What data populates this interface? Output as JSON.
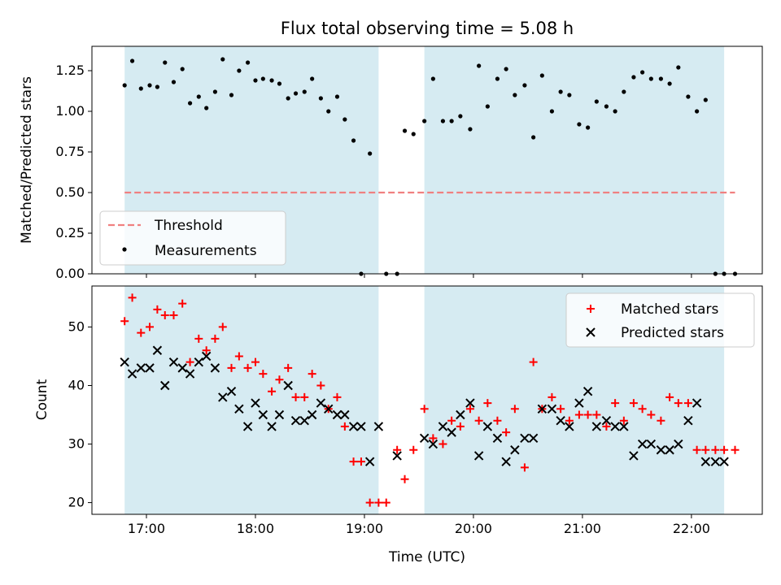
{
  "chart_data": [
    {
      "type": "scatter",
      "title": "Flux total observing time = 5.08 h",
      "xlabel": "",
      "ylabel": "Matched/Predicted stars",
      "ylim": [
        0,
        1.4
      ],
      "yticks": [
        "0.00",
        "0.25",
        "0.50",
        "0.75",
        "1.00",
        "1.25"
      ],
      "xlim_hours": [
        16.5,
        22.65
      ],
      "xtick_hours": [
        17,
        18,
        19,
        20,
        21,
        22
      ],
      "shaded_spans_hours": [
        [
          16.8,
          19.13
        ],
        [
          19.55,
          22.3
        ]
      ],
      "threshold": {
        "name": "Threshold",
        "y": 0.5,
        "x_start_hours": 16.8,
        "x_end_hours": 22.4,
        "color": "#f08080"
      },
      "series": [
        {
          "name": "Measurements",
          "color": "#000000",
          "x_hours": [
            16.8,
            16.87,
            16.95,
            17.03,
            17.1,
            17.17,
            17.25,
            17.33,
            17.4,
            17.48,
            17.55,
            17.63,
            17.7,
            17.78,
            17.85,
            17.93,
            18.0,
            18.07,
            18.15,
            18.22,
            18.3,
            18.37,
            18.45,
            18.52,
            18.6,
            18.67,
            18.75,
            18.82,
            18.9,
            18.97,
            19.05,
            19.2,
            19.3,
            19.37,
            19.45,
            19.55,
            19.63,
            19.72,
            19.8,
            19.88,
            19.97,
            20.05,
            20.13,
            20.22,
            20.3,
            20.38,
            20.47,
            20.55,
            20.63,
            20.72,
            20.8,
            20.88,
            20.97,
            21.05,
            21.13,
            21.22,
            21.3,
            21.38,
            21.47,
            21.55,
            21.63,
            21.72,
            21.8,
            21.88,
            21.97,
            22.05,
            22.13,
            22.22,
            22.3,
            22.4
          ],
          "y": [
            1.16,
            1.31,
            1.14,
            1.16,
            1.15,
            1.3,
            1.18,
            1.26,
            1.05,
            1.09,
            1.02,
            1.12,
            1.32,
            1.1,
            1.25,
            1.3,
            1.19,
            1.2,
            1.19,
            1.17,
            1.08,
            1.11,
            1.12,
            1.2,
            1.08,
            1.0,
            1.09,
            0.95,
            0.82,
            0.0,
            0.74,
            0.0,
            0.0,
            0.88,
            0.86,
            0.94,
            1.2,
            0.94,
            0.94,
            0.97,
            0.89,
            1.28,
            1.03,
            1.2,
            1.26,
            1.1,
            1.16,
            0.84,
            1.22,
            1.0,
            1.12,
            1.1,
            0.92,
            0.9,
            1.06,
            1.03,
            1.0,
            1.12,
            1.21,
            1.24,
            1.2,
            1.2,
            1.17,
            1.27,
            1.09,
            1.0,
            1.07,
            0.0,
            0.0,
            0.0
          ]
        }
      ],
      "legend": {
        "placement": "lower-left",
        "entries": [
          "Threshold",
          "Measurements"
        ]
      }
    },
    {
      "type": "scatter",
      "title": "",
      "xlabel": "Time (UTC)",
      "ylabel": "Count",
      "ylim": [
        18,
        57
      ],
      "yticks": [
        "20",
        "30",
        "40",
        "50"
      ],
      "xlim_hours": [
        16.5,
        22.65
      ],
      "xtick_hours": [
        17,
        18,
        19,
        20,
        21,
        22
      ],
      "xtick_labels": [
        "17:00",
        "18:00",
        "19:00",
        "20:00",
        "21:00",
        "22:00"
      ],
      "shaded_spans_hours": [
        [
          16.8,
          19.13
        ],
        [
          19.55,
          22.3
        ]
      ],
      "series": [
        {
          "name": "Matched stars",
          "marker": "plus",
          "color": "#ff0000",
          "x_hours": [
            16.8,
            16.87,
            16.95,
            17.03,
            17.1,
            17.17,
            17.25,
            17.33,
            17.4,
            17.48,
            17.55,
            17.63,
            17.7,
            17.78,
            17.85,
            17.93,
            18.0,
            18.07,
            18.15,
            18.22,
            18.3,
            18.37,
            18.45,
            18.52,
            18.6,
            18.67,
            18.75,
            18.82,
            18.9,
            18.97,
            19.05,
            19.13,
            19.2,
            19.3,
            19.37,
            19.45,
            19.55,
            19.63,
            19.72,
            19.8,
            19.88,
            19.97,
            20.05,
            20.13,
            20.22,
            20.3,
            20.38,
            20.47,
            20.55,
            20.63,
            20.72,
            20.8,
            20.88,
            20.97,
            21.05,
            21.13,
            21.22,
            21.3,
            21.38,
            21.47,
            21.55,
            21.63,
            21.72,
            21.8,
            21.88,
            21.97,
            22.05,
            22.13,
            22.22,
            22.3,
            22.4
          ],
          "y": [
            51,
            55,
            49,
            50,
            53,
            52,
            52,
            54,
            44,
            48,
            46,
            48,
            50,
            43,
            45,
            43,
            44,
            42,
            39,
            41,
            43,
            38,
            38,
            42,
            40,
            36,
            38,
            33,
            27,
            27,
            20,
            20,
            20,
            29,
            24,
            29,
            36,
            31,
            30,
            34,
            33,
            36,
            34,
            37,
            34,
            32,
            36,
            26,
            44,
            36,
            38,
            36,
            34,
            35,
            35,
            35,
            33,
            37,
            34,
            37,
            36,
            35,
            34,
            38,
            37,
            37,
            29,
            29,
            29,
            29,
            29
          ]
        },
        {
          "name": "Predicted stars",
          "marker": "x",
          "color": "#000000",
          "x_hours": [
            16.8,
            16.87,
            16.95,
            17.03,
            17.1,
            17.17,
            17.25,
            17.33,
            17.4,
            17.48,
            17.55,
            17.63,
            17.7,
            17.78,
            17.85,
            17.93,
            18.0,
            18.07,
            18.15,
            18.22,
            18.3,
            18.37,
            18.45,
            18.52,
            18.6,
            18.67,
            18.75,
            18.82,
            18.9,
            18.97,
            19.05,
            19.13,
            19.3,
            19.55,
            19.63,
            19.72,
            19.8,
            19.88,
            19.97,
            20.05,
            20.13,
            20.22,
            20.3,
            20.38,
            20.47,
            20.55,
            20.63,
            20.72,
            20.8,
            20.88,
            20.97,
            21.05,
            21.13,
            21.22,
            21.3,
            21.38,
            21.47,
            21.55,
            21.63,
            21.72,
            21.8,
            21.88,
            21.97,
            22.05,
            22.13,
            22.22,
            22.3
          ],
          "y": [
            44,
            42,
            43,
            43,
            46,
            40,
            44,
            43,
            42,
            44,
            45,
            43,
            38,
            39,
            36,
            33,
            37,
            35,
            33,
            35,
            40,
            34,
            34,
            35,
            37,
            36,
            35,
            35,
            33,
            33,
            27,
            33,
            28,
            31,
            30,
            33,
            32,
            35,
            37,
            28,
            33,
            31,
            27,
            29,
            31,
            31,
            36,
            36,
            34,
            33,
            37,
            39,
            33,
            34,
            33,
            33,
            28,
            30,
            30,
            29,
            29,
            30,
            34,
            37,
            27,
            27,
            27
          ]
        }
      ],
      "legend": {
        "placement": "upper-right",
        "entries": [
          "Matched stars",
          "Predicted stars"
        ]
      }
    }
  ]
}
